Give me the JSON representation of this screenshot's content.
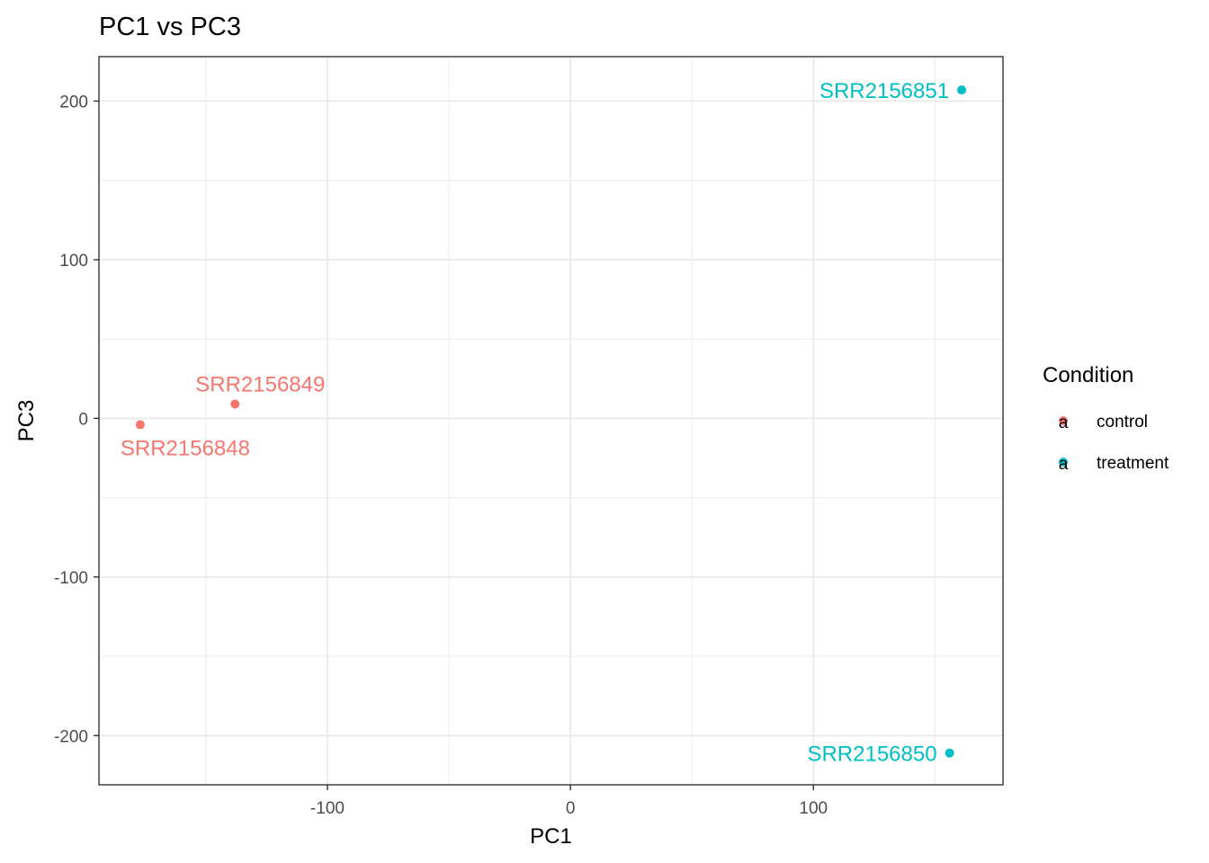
{
  "chart_data": {
    "type": "scatter",
    "title": "PC1 vs PC3",
    "xlabel": "PC1",
    "ylabel": "PC3",
    "xlim": [
      -194,
      178
    ],
    "ylim": [
      -231,
      228
    ],
    "x_ticks": [
      -100,
      0,
      100
    ],
    "x_tick_labels": [
      "-100",
      "0",
      "100"
    ],
    "y_ticks": [
      -200,
      -100,
      0,
      100,
      200
    ],
    "y_tick_labels": [
      "-200",
      "-100",
      "0",
      "100",
      "200"
    ],
    "grid": true,
    "legend": {
      "title": "Condition",
      "position": "right",
      "symbol": "a",
      "entries": [
        {
          "name": "control",
          "color": "#F8766D"
        },
        {
          "name": "treatment",
          "color": "#00BFC4"
        }
      ]
    },
    "series": [
      {
        "name": "control",
        "color": "#F8766D",
        "points": [
          {
            "label": "SRR2156848",
            "x": -177,
            "y": -4,
            "label_pos": "below"
          },
          {
            "label": "SRR2156849",
            "x": -138,
            "y": 9,
            "label_pos": "above"
          }
        ]
      },
      {
        "name": "treatment",
        "color": "#00BFC4",
        "points": [
          {
            "label": "SRR2156851",
            "x": 161,
            "y": 207,
            "label_pos": "left"
          },
          {
            "label": "SRR2156850",
            "x": 156,
            "y": -211,
            "label_pos": "left"
          }
        ]
      }
    ]
  }
}
